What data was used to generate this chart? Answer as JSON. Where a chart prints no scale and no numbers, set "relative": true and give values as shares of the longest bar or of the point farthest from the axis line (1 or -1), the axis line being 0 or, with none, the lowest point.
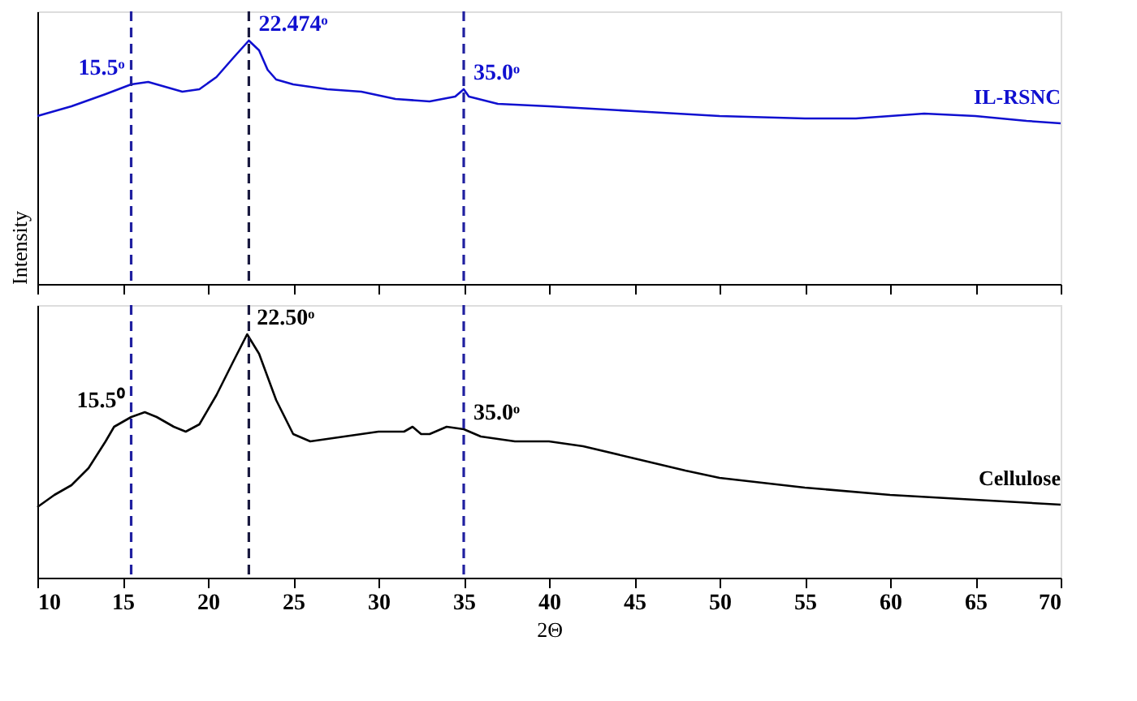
{
  "chart_data": [
    {
      "type": "line",
      "relative": true,
      "ylabel": "Intensity",
      "xlim": [
        10,
        70
      ],
      "xticks": [
        10,
        15,
        20,
        25,
        30,
        35,
        40,
        45,
        50,
        55,
        60,
        65,
        70
      ],
      "tick_labels": false,
      "grid": false,
      "marker": "none",
      "line_style": "solid",
      "series": [
        {
          "name": "IL-RSNC",
          "color": "#1010d0",
          "x": [
            10,
            12,
            14,
            15.5,
            16.5,
            17.5,
            18.5,
            19.5,
            20.5,
            21.5,
            22.4,
            23,
            23.5,
            24,
            25,
            27,
            29,
            31,
            33,
            34.5,
            35,
            35.3,
            37,
            40,
            45,
            50,
            55,
            58,
            62,
            65,
            68,
            70
          ],
          "values": [
            0.69,
            0.73,
            0.78,
            0.82,
            0.83,
            0.81,
            0.79,
            0.8,
            0.85,
            0.93,
            1.0,
            0.96,
            0.88,
            0.84,
            0.82,
            0.8,
            0.79,
            0.76,
            0.75,
            0.77,
            0.8,
            0.77,
            0.74,
            0.73,
            0.71,
            0.69,
            0.68,
            0.68,
            0.7,
            0.69,
            0.67,
            0.66
          ]
        }
      ],
      "ref_lines": [
        {
          "axis": "x",
          "value": 15.5,
          "color": "#2020a0",
          "line_style": "dashed"
        },
        {
          "axis": "x",
          "value": 22.4,
          "color": "#1a1a40",
          "line_style": "dashed"
        },
        {
          "axis": "x",
          "value": 35.0,
          "color": "#2020a0",
          "line_style": "dashed"
        }
      ],
      "annotations": [
        {
          "text": "15.5ᵒ",
          "x": 15.5,
          "y": 0.82
        },
        {
          "text": "22.474ᵒ",
          "x": 22.4,
          "y": 1.0
        },
        {
          "text": "35.0ᵒ",
          "x": 35.0,
          "y": 0.8
        }
      ]
    },
    {
      "type": "line",
      "relative": true,
      "xlabel": "2Θ",
      "xlim": [
        10,
        70
      ],
      "xticks": [
        10,
        15,
        20,
        25,
        30,
        35,
        40,
        45,
        50,
        55,
        60,
        65,
        70
      ],
      "tick_labels": "x",
      "grid": false,
      "marker": "none",
      "line_style": "solid",
      "series": [
        {
          "name": "Cellulose",
          "color": "#000000",
          "x": [
            10,
            11,
            12,
            13,
            14,
            14.5,
            15.5,
            16.3,
            17,
            18,
            18.7,
            19.5,
            20.5,
            21.5,
            22.3,
            23,
            24,
            25,
            26,
            28,
            30,
            31.5,
            32,
            32.5,
            33,
            34,
            35,
            36,
            38,
            40,
            42,
            45,
            48,
            50,
            55,
            60,
            65,
            70
          ],
          "values": [
            0.29,
            0.34,
            0.38,
            0.45,
            0.56,
            0.62,
            0.66,
            0.68,
            0.66,
            0.62,
            0.6,
            0.63,
            0.75,
            0.89,
            1.0,
            0.92,
            0.73,
            0.59,
            0.56,
            0.58,
            0.6,
            0.6,
            0.62,
            0.59,
            0.59,
            0.62,
            0.61,
            0.58,
            0.56,
            0.56,
            0.54,
            0.49,
            0.44,
            0.41,
            0.37,
            0.34,
            0.32,
            0.3
          ]
        }
      ],
      "ref_lines": [
        {
          "axis": "x",
          "value": 15.5,
          "color": "#2020a0",
          "line_style": "dashed"
        },
        {
          "axis": "x",
          "value": 22.4,
          "color": "#1a1a40",
          "line_style": "dashed"
        },
        {
          "axis": "x",
          "value": 35.0,
          "color": "#2020a0",
          "line_style": "dashed"
        }
      ],
      "annotations": [
        {
          "text": "15.5⁰",
          "x": 15.5,
          "y": 0.66
        },
        {
          "text": "22.50ᵒ",
          "x": 22.3,
          "y": 1.0
        },
        {
          "text": "35.0ᵒ",
          "x": 35.0,
          "y": 0.61
        }
      ]
    }
  ]
}
